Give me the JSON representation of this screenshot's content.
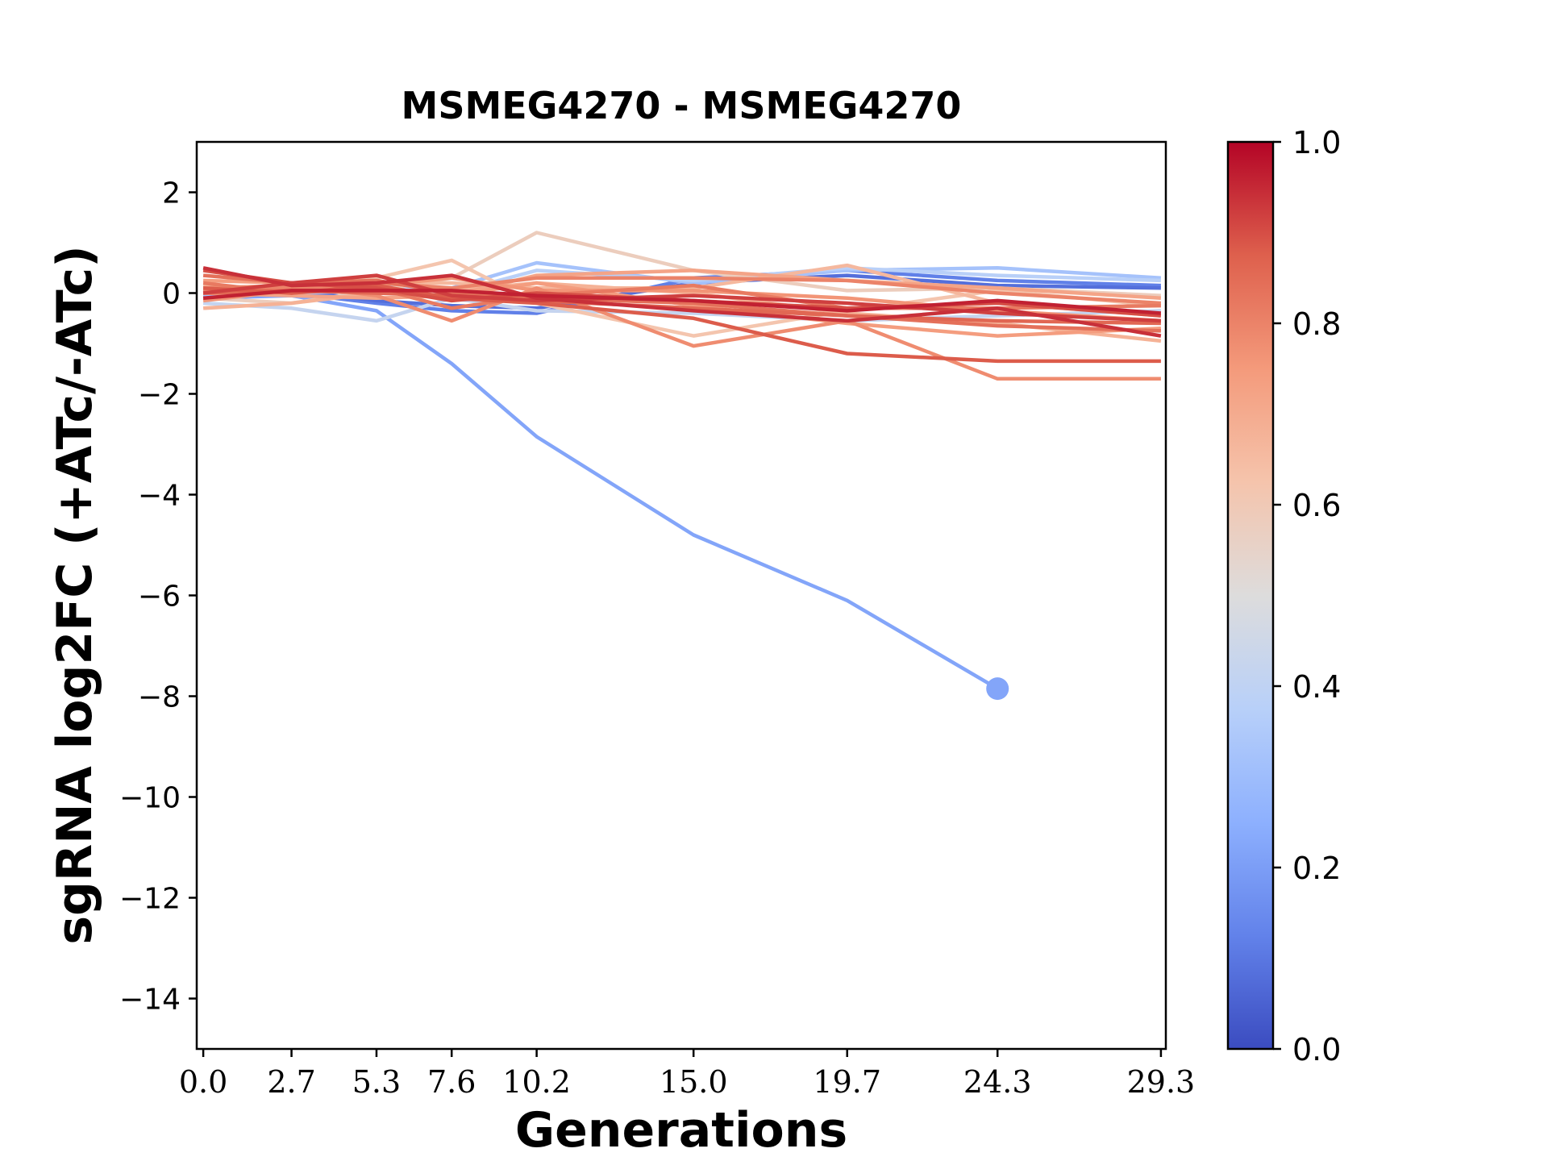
{
  "chart_data": {
    "type": "line",
    "title": "MSMEG4270 - MSMEG4270",
    "xlabel": "Generations",
    "ylabel": "sgRNA log2FC (+ATc/-ATc)",
    "x": [
      0.0,
      2.7,
      5.3,
      7.6,
      10.2,
      15.0,
      19.7,
      24.3,
      29.3
    ],
    "x_tick_labels": [
      "0.0",
      "2.7",
      "5.3",
      "7.6",
      "10.2",
      "15.0",
      "19.7",
      "24.3",
      "29.3"
    ],
    "y_ticks": [
      2,
      0,
      -2,
      -4,
      -6,
      -8,
      -10,
      -12,
      -14
    ],
    "y_tick_labels": [
      "2",
      "0",
      "−2",
      "−4",
      "−6",
      "−8",
      "−10",
      "−12",
      "−14"
    ],
    "xlim": [
      -0.2,
      29.45
    ],
    "ylim": [
      -15,
      3
    ],
    "grid": false,
    "colormap": "coolwarm",
    "colorbar": {
      "range": [
        0.0,
        1.0
      ],
      "ticks": [
        0.0,
        0.2,
        0.4,
        0.6,
        0.8,
        1.0
      ],
      "tick_labels": [
        "0.0",
        "0.2",
        "0.4",
        "0.6",
        "0.8",
        "1.0"
      ],
      "stops": [
        "#3b4cc0",
        "#6282ea",
        "#8db0fe",
        "#b8d0f9",
        "#dddcdc",
        "#f5c4ac",
        "#f49a7b",
        "#de604d",
        "#b40426"
      ]
    },
    "series": [
      {
        "color_value": 0.22,
        "values": [
          -0.1,
          -0.05,
          -0.35,
          -1.4,
          -2.85,
          -4.8,
          -6.1,
          -7.85,
          null
        ],
        "end_marker": true
      },
      {
        "color_value": 0.12,
        "values": [
          0.05,
          0.0,
          -0.2,
          -0.35,
          -0.4,
          0.3,
          0.45,
          0.25,
          0.15
        ]
      },
      {
        "color_value": 0.08,
        "values": [
          0.0,
          0.05,
          -0.15,
          -0.25,
          -0.3,
          0.2,
          0.35,
          0.15,
          0.1
        ]
      },
      {
        "color_value": 0.32,
        "values": [
          -0.05,
          0.1,
          0.15,
          0.1,
          0.6,
          0.2,
          0.45,
          0.5,
          0.3
        ]
      },
      {
        "color_value": 0.38,
        "values": [
          0.1,
          0.0,
          0.05,
          0.0,
          0.45,
          0.25,
          0.5,
          0.35,
          0.25
        ]
      },
      {
        "color_value": 0.42,
        "values": [
          -0.2,
          -0.3,
          -0.55,
          -0.1,
          -0.35,
          -0.4,
          -0.55,
          -0.45,
          -0.35
        ]
      },
      {
        "color_value": 0.58,
        "values": [
          -0.1,
          -0.2,
          0.05,
          0.3,
          1.2,
          0.45,
          0.05,
          0.1,
          -0.05
        ]
      },
      {
        "color_value": 0.62,
        "values": [
          0.0,
          0.1,
          0.3,
          0.65,
          -0.2,
          -0.85,
          -0.35,
          0.05,
          -0.25
        ]
      },
      {
        "color_value": 0.66,
        "values": [
          0.15,
          0.0,
          0.2,
          0.2,
          0.1,
          0.1,
          0.55,
          -0.2,
          -0.45
        ]
      },
      {
        "color_value": 0.68,
        "values": [
          -0.3,
          -0.2,
          0.0,
          0.05,
          0.2,
          0.0,
          -0.4,
          -0.6,
          -0.95
        ]
      },
      {
        "color_value": 0.72,
        "values": [
          0.0,
          -0.05,
          -0.1,
          -0.05,
          0.35,
          0.45,
          0.25,
          0.1,
          -0.1
        ]
      },
      {
        "color_value": 0.74,
        "values": [
          0.25,
          0.2,
          0.0,
          -0.05,
          0.2,
          -0.25,
          -0.6,
          -0.85,
          -0.7
        ]
      },
      {
        "color_value": 0.76,
        "values": [
          -0.15,
          0.05,
          0.15,
          0.3,
          0.05,
          0.05,
          -0.1,
          -0.35,
          -0.55
        ]
      },
      {
        "color_value": 0.78,
        "values": [
          0.1,
          0.15,
          -0.05,
          -0.55,
          0.1,
          -1.05,
          -0.55,
          -1.7,
          -1.7
        ]
      },
      {
        "color_value": 0.8,
        "values": [
          0.05,
          0.1,
          0.2,
          0.1,
          0.3,
          0.3,
          0.25,
          0.0,
          -0.2
        ]
      },
      {
        "color_value": 0.82,
        "values": [
          0.2,
          0.0,
          0.1,
          -0.3,
          -0.05,
          0.15,
          -0.3,
          -0.3,
          -0.25
        ]
      },
      {
        "color_value": 0.84,
        "values": [
          0.35,
          0.2,
          0.25,
          0.0,
          -0.1,
          -0.2,
          -0.45,
          -0.65,
          -0.75
        ]
      },
      {
        "color_value": 0.86,
        "values": [
          0.0,
          0.05,
          0.0,
          -0.05,
          -0.15,
          -0.3,
          -0.45,
          -0.55,
          -0.6
        ]
      },
      {
        "color_value": 0.88,
        "values": [
          0.1,
          0.0,
          0.15,
          -0.1,
          -0.2,
          -0.5,
          -1.2,
          -1.35,
          -1.35
        ]
      },
      {
        "color_value": 0.9,
        "values": [
          0.45,
          0.2,
          0.1,
          -0.15,
          0.0,
          -0.15,
          -0.3,
          -0.2,
          -0.45
        ]
      },
      {
        "color_value": 0.92,
        "values": [
          0.0,
          0.2,
          0.35,
          -0.05,
          -0.15,
          -0.05,
          -0.2,
          -0.4,
          -0.55
        ]
      },
      {
        "color_value": 0.94,
        "values": [
          0.5,
          0.15,
          0.2,
          0.35,
          -0.1,
          -0.35,
          -0.55,
          -0.3,
          -0.85
        ]
      },
      {
        "color_value": 0.96,
        "values": [
          -0.1,
          0.05,
          0.05,
          0.05,
          -0.05,
          -0.15,
          -0.35,
          -0.15,
          -0.4
        ]
      }
    ]
  }
}
